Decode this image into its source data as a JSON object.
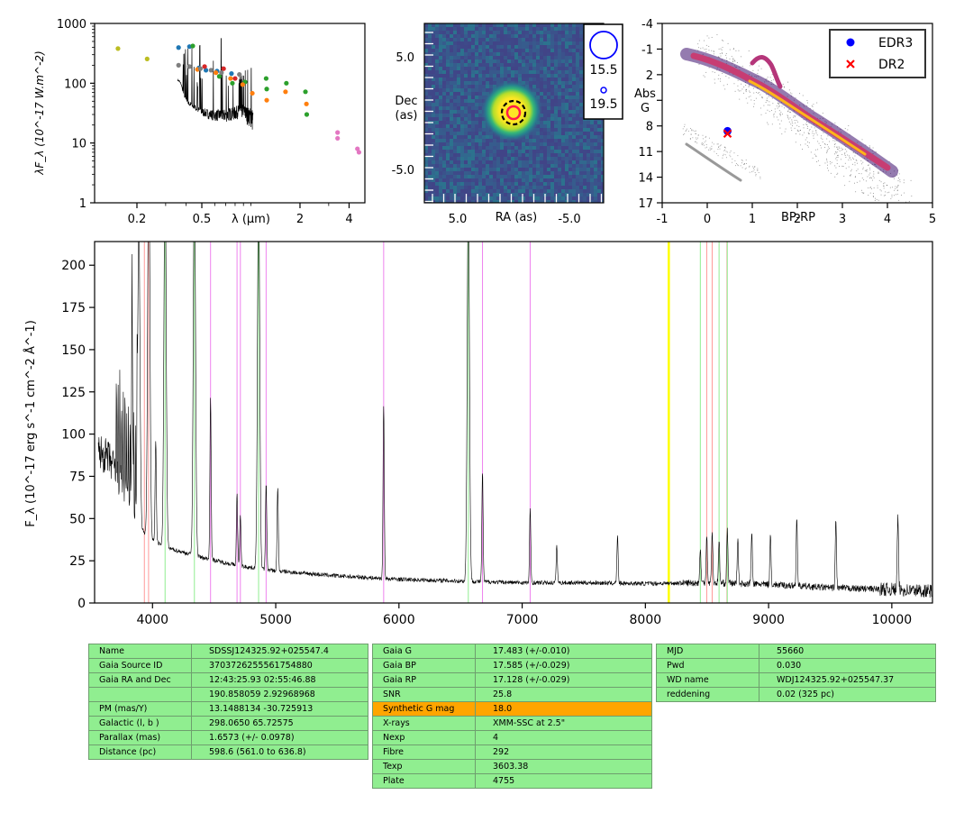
{
  "chart_data": [
    {
      "type": "scatter",
      "xlabel": "λ (μm)",
      "ylabel": "λF_λ (10^-17 W.m^-2)",
      "xscale": "log",
      "yscale": "log",
      "xlim": [
        0.11,
        5.0
      ],
      "ylim": [
        1,
        1000
      ],
      "xticks": [
        "0.2",
        "0.5",
        "2",
        "4"
      ],
      "yticks": [
        "1",
        "10",
        "100",
        "1000"
      ],
      "series": [
        {
          "color": "#bcbd22",
          "points": [
            [
              0.153,
              380
            ],
            [
              0.231,
              255
            ]
          ]
        },
        {
          "color": "#1f77b4",
          "points": [
            [
              0.36,
              395
            ],
            [
              0.42,
              410
            ],
            [
              0.48,
              180
            ],
            [
              0.53,
              165
            ],
            [
              0.62,
              160
            ],
            [
              0.76,
              145
            ]
          ]
        },
        {
          "color": "#2ca02c",
          "points": [
            [
              0.44,
              420
            ],
            [
              0.64,
              130
            ],
            [
              0.77,
              100
            ],
            [
              0.92,
              105
            ],
            [
              1.24,
              120
            ],
            [
              1.65,
              100
            ],
            [
              2.16,
              72
            ],
            [
              2.2,
              30
            ],
            [
              1.25,
              80
            ]
          ]
        },
        {
          "color": "#ff7f0e",
          "points": [
            [
              0.47,
              170
            ],
            [
              0.61,
              150
            ],
            [
              0.75,
              120
            ],
            [
              0.89,
              95
            ],
            [
              1.02,
              68
            ],
            [
              1.25,
              52
            ],
            [
              1.63,
              72
            ],
            [
              2.19,
              45
            ]
          ]
        },
        {
          "color": "#d62728",
          "points": [
            [
              0.52,
              190
            ],
            [
              0.68,
              175
            ],
            [
              0.8,
              120
            ]
          ]
        },
        {
          "color": "#7f7f7f",
          "points": [
            [
              0.36,
              200
            ],
            [
              0.42,
              190
            ],
            [
              0.49,
              175
            ],
            [
              0.57,
              165
            ],
            [
              0.66,
              150
            ],
            [
              0.85,
              140
            ]
          ]
        },
        {
          "color": "#e377c2",
          "points": [
            [
              3.4,
              15
            ],
            [
              3.4,
              12
            ],
            [
              4.5,
              8
            ],
            [
              4.6,
              7
            ]
          ]
        }
      ]
    },
    {
      "type": "heatmap",
      "xlabel": "RA (as)",
      "ylabel": "Dec (as)",
      "xticks": [
        "5.0",
        "-5.0"
      ],
      "yticks": [
        "5.0",
        "-5.0"
      ],
      "legend": [
        {
          "label": "15.5",
          "size": "large"
        },
        {
          "label": "19.5",
          "size": "small"
        }
      ]
    },
    {
      "type": "scatter",
      "xlabel": "BP-RP",
      "ylabel": "Abs G",
      "xlim": [
        -1,
        5
      ],
      "ylim": [
        17,
        -4
      ],
      "xticks": [
        "-1",
        "0",
        "1",
        "2",
        "3",
        "4",
        "5"
      ],
      "yticks": [
        "-4",
        "-1",
        "2",
        "5",
        "8",
        "11",
        "14",
        "17"
      ],
      "legend_position": "top-right",
      "series": [
        {
          "name": "EDR3",
          "marker": "o",
          "color": "#0000ff",
          "points": [
            [
              0.45,
              8.6
            ]
          ]
        },
        {
          "name": "DR2",
          "marker": "x",
          "color": "#ff0000",
          "points": [
            [
              0.45,
              8.9
            ]
          ]
        }
      ]
    },
    {
      "type": "line",
      "ylabel": "F_λ (10^-17 erg s^-1 cm^-2 Å^-1)",
      "xlim": [
        3530,
        10330
      ],
      "ylim": [
        0,
        214
      ],
      "xticks": [
        "4000",
        "5000",
        "6000",
        "7000",
        "8000",
        "9000",
        "10000"
      ],
      "yticks": [
        "0",
        "25",
        "50",
        "75",
        "100",
        "125",
        "150",
        "175",
        "200"
      ],
      "continuum": [
        [
          3560,
          90
        ],
        [
          3650,
          85
        ],
        [
          3750,
          70
        ],
        [
          3850,
          50
        ],
        [
          3950,
          40
        ],
        [
          4100,
          33
        ],
        [
          4400,
          27
        ],
        [
          4700,
          22
        ],
        [
          5000,
          19
        ],
        [
          5500,
          16
        ],
        [
          6000,
          14
        ],
        [
          6500,
          13
        ],
        [
          7000,
          12
        ],
        [
          7500,
          12
        ],
        [
          8000,
          11.5
        ],
        [
          8500,
          12
        ],
        [
          9000,
          11
        ],
        [
          9500,
          9
        ],
        [
          10000,
          8
        ],
        [
          10330,
          7
        ]
      ],
      "emission_lines": [
        [
          3835,
          100
        ],
        [
          3889,
          180
        ],
        [
          3970,
          230
        ],
        [
          4026,
          60
        ],
        [
          4102,
          230
        ],
        [
          4340,
          230
        ],
        [
          4471,
          97
        ],
        [
          4686,
          42
        ],
        [
          4713,
          30
        ],
        [
          4861,
          230
        ],
        [
          4922,
          52
        ],
        [
          5016,
          50
        ],
        [
          5876,
          103
        ],
        [
          6563,
          230
        ],
        [
          6678,
          65
        ],
        [
          7065,
          43
        ],
        [
          7281,
          22
        ],
        [
          7774,
          28
        ],
        [
          8446,
          20
        ],
        [
          8498,
          28
        ],
        [
          8542,
          31
        ],
        [
          8598,
          25
        ],
        [
          8665,
          32
        ],
        [
          8750,
          27
        ],
        [
          8863,
          30
        ],
        [
          9015,
          29
        ],
        [
          9229,
          41
        ],
        [
          9546,
          40
        ],
        [
          10049,
          43
        ]
      ],
      "markers": [
        {
          "x": 3934,
          "color": "#ff9999"
        },
        {
          "x": 3968,
          "color": "#ff9999"
        },
        {
          "x": 4102,
          "color": "#90ee90"
        },
        {
          "x": 4340,
          "color": "#90ee90"
        },
        {
          "x": 4471,
          "color": "#ee82ee"
        },
        {
          "x": 4686,
          "color": "#ee82ee"
        },
        {
          "x": 4713,
          "color": "#ee82ee"
        },
        {
          "x": 4861,
          "color": "#90ee90"
        },
        {
          "x": 4922,
          "color": "#ee82ee"
        },
        {
          "x": 5876,
          "color": "#ee82ee"
        },
        {
          "x": 6563,
          "color": "#90ee90"
        },
        {
          "x": 6678,
          "color": "#ee82ee"
        },
        {
          "x": 7065,
          "color": "#ee82ee"
        },
        {
          "x": 8190,
          "color": "#ffff00"
        },
        {
          "x": 8446,
          "color": "#90ee90"
        },
        {
          "x": 8498,
          "color": "#ff9999"
        },
        {
          "x": 8542,
          "color": "#ff9999"
        },
        {
          "x": 8598,
          "color": "#90ee90"
        },
        {
          "x": 8662,
          "color": "#ff9999"
        },
        {
          "x": 8665,
          "color": "#90ee90"
        }
      ]
    }
  ],
  "tables": [
    {
      "rows": [
        [
          "Name",
          "SDSSJ124325.92+025547.4"
        ],
        [
          "Gaia Source ID",
          "3703726255561754880"
        ],
        [
          "Gaia RA and Dec",
          "12:43:25.93    02:55:46.88"
        ],
        [
          "",
          "190.858059    2.92968968"
        ],
        [
          "PM (mas/Y)",
          "13.1488134    -30.725913"
        ],
        [
          "Galactic (l, b )",
          "298.0650    65.72575"
        ],
        [
          "Parallax (mas)",
          "1.6573 (+/- 0.0978)"
        ],
        [
          "Distance (pc)",
          "598.6 (561.0 to 636.8)"
        ]
      ]
    },
    {
      "rows": [
        [
          "Gaia G",
          "17.483 (+/-0.010)"
        ],
        [
          "Gaia BP",
          "17.585 (+/-0.029)"
        ],
        [
          "Gaia RP",
          "17.128 (+/-0.029)"
        ],
        [
          "SNR",
          "25.8"
        ],
        [
          "Synthetic G mag",
          "18.0"
        ],
        [
          "X-rays",
          "XMM-SSC at 2.5\""
        ],
        [
          "Nexp",
          "4"
        ],
        [
          "Fibre",
          "292"
        ],
        [
          "Texp",
          "3603.38"
        ],
        [
          "Plate",
          "4755"
        ]
      ],
      "highlight_row": 4,
      "highlight_color": "#ffa500"
    },
    {
      "rows": [
        [
          "MJD",
          "55660"
        ],
        [
          "Pwd",
          "0.030"
        ],
        [
          "WD name",
          "WDJ124325.92+025547.37"
        ],
        [
          "reddening",
          "0.02 (325 pc)"
        ]
      ]
    }
  ]
}
